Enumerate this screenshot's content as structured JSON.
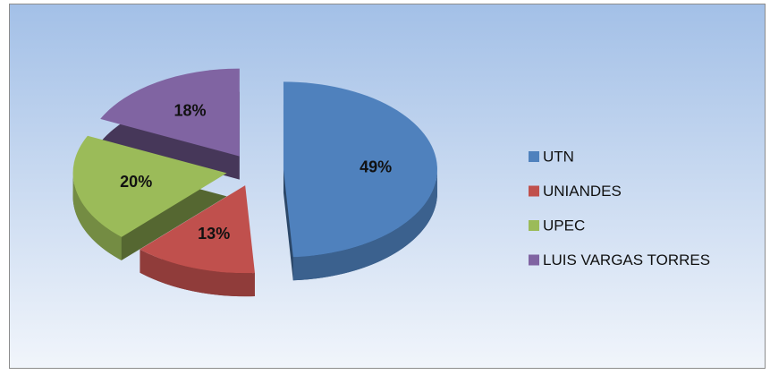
{
  "chart_data": {
    "type": "pie",
    "categories": [
      "UTN",
      "UNIANDES",
      "UPEC",
      "LUIS VARGAS TORRES"
    ],
    "values": [
      49,
      13,
      20,
      18
    ],
    "value_labels": [
      "49%",
      "13%",
      "20%",
      "18%"
    ],
    "colors": [
      "#4f81bd",
      "#c0504d",
      "#9bbb59",
      "#8064a2"
    ],
    "legend": "right"
  }
}
